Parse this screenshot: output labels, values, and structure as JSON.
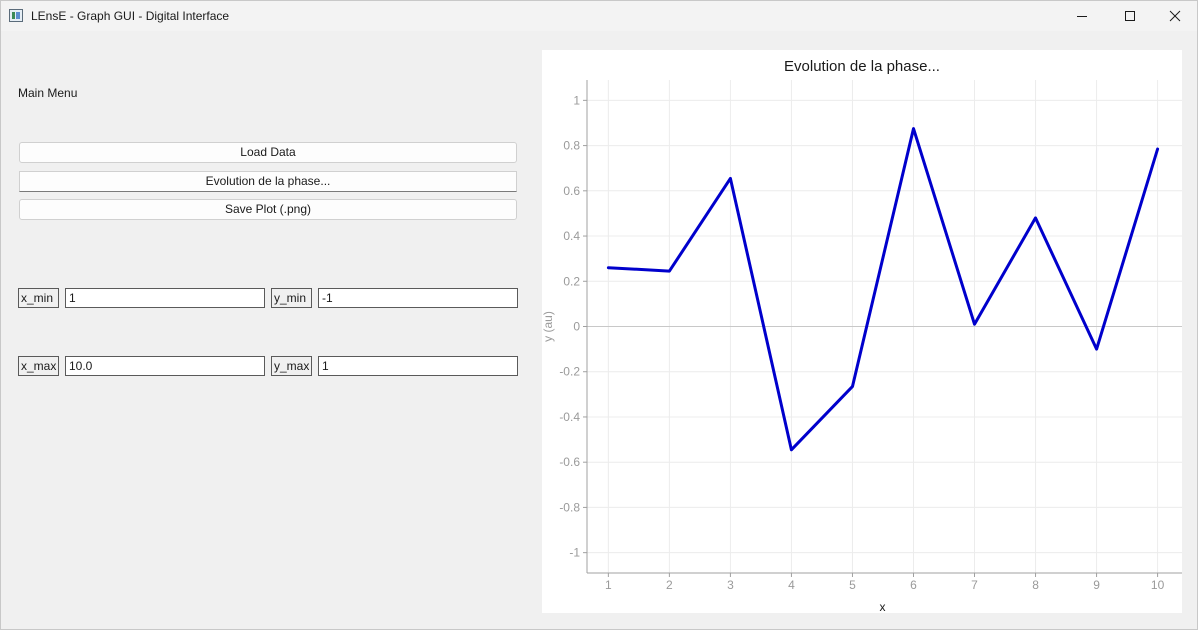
{
  "window": {
    "title": "LEnsE - Graph GUI - Digital Interface"
  },
  "menu": {
    "label": "Main Menu",
    "buttons": {
      "load": "Load Data",
      "evolution": "Evolution de la phase...",
      "save": "Save Plot (.png)"
    }
  },
  "limits": {
    "x_min_label": "x_min",
    "x_min_value": "1",
    "y_min_label": "y_min",
    "y_min_value": "-1",
    "x_max_label": "x_max",
    "x_max_value": "10.0",
    "y_max_label": "y_max",
    "y_max_value": "1"
  },
  "plot": {
    "title": "Evolution de la phase..."
  },
  "chart_data": {
    "type": "line",
    "title": "Evolution de la phase...",
    "xlabel": "x",
    "ylabel": "y (au)",
    "xlim": [
      0.65,
      10.4
    ],
    "ylim": [
      -1.09,
      1.09
    ],
    "grid": true,
    "x_ticks": [
      1,
      2,
      3,
      4,
      5,
      6,
      7,
      8,
      9,
      10
    ],
    "y_ticks": [
      -1,
      -0.8,
      -0.6,
      -0.4,
      -0.2,
      0,
      0.2,
      0.4,
      0.6,
      0.8,
      1
    ],
    "y_tick_labels": [
      "-1",
      "-0.8",
      "-0.6",
      "-0.4",
      "-0.2",
      "0",
      "0.2",
      "0.4",
      "0.6",
      "0.8",
      "1"
    ],
    "series": [
      {
        "x": [
          1,
          2,
          3,
          4,
          5,
          6,
          7,
          8,
          9,
          10
        ],
        "values": [
          0.26,
          0.245,
          0.655,
          -0.545,
          -0.265,
          0.875,
          0.01,
          0.48,
          -0.1,
          0.785
        ]
      }
    ],
    "colors": {
      "line": "#0000cc",
      "axis": "#a0a0a0",
      "grid": "#ececec",
      "zero_line": "#c8c8c8",
      "text": "#9a9a9a",
      "xlabel": "#1a1a1a",
      "ylabel": "#9a9a9a"
    }
  }
}
